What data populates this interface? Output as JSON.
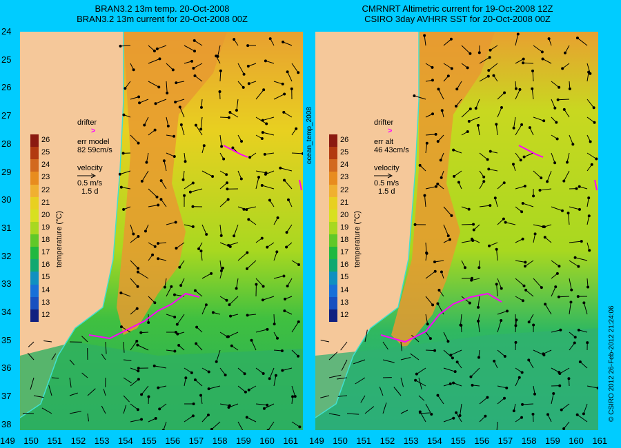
{
  "titles": {
    "left_line1": "BRAN3.2 13m temp. 20-Oct-2008",
    "left_line2": "BRAN3.2 13m current for 20-Oct-2008 00Z",
    "right_line1": "CMRNRT Altimetric current for 19-Oct-2008 12Z",
    "right_line2": "CSIRO 3day AVHRR SST for 20-Oct-2008 00Z"
  },
  "lat_labels": [
    "24",
    "25",
    "26",
    "27",
    "28",
    "29",
    "30",
    "31",
    "32",
    "33",
    "34",
    "35",
    "36",
    "37",
    "38"
  ],
  "lon_labels": [
    "149",
    "150",
    "151",
    "152",
    "153",
    "154",
    "155",
    "156",
    "157",
    "158",
    "159",
    "160",
    "161"
  ],
  "colorbar": {
    "ticks": [
      "26",
      "25",
      "24",
      "23",
      "22",
      "21",
      "20",
      "19",
      "18",
      "17",
      "16",
      "15",
      "14",
      "13",
      "12"
    ],
    "title": "temperature (°C)",
    "colors": [
      "#8b1a10",
      "#b23a10",
      "#d2691e",
      "#e88c1e",
      "#f0b030",
      "#e8d020",
      "#d8e020",
      "#a8d820",
      "#60c828",
      "#20b840",
      "#10a870",
      "#1090c0",
      "#1870d8",
      "#1850c0",
      "#102080"
    ]
  },
  "left_legend": {
    "drifter": "drifter",
    "drifter_symbol": ">",
    "err_label": "err model",
    "err_value": "82 59cm/s",
    "velocity": "velocity",
    "speed": "0.5 m/s",
    "days": "1.5 d"
  },
  "right_legend": {
    "drifter": "drifter",
    "drifter_symbol": ">",
    "err_label": "err alt",
    "err_value": "46 43cm/s",
    "velocity": "velocity",
    "speed": "0.5 m/s",
    "days": "1.5 d"
  },
  "side_label": "ocean_temp_2008",
  "copyright": "© CSIRO 2012   26-Feb-2012 21:24:06",
  "colors": {
    "background": "#00ccff",
    "land": "#f5c89a",
    "drifter": "#ff00ff",
    "coast_line": "#40e0d0"
  }
}
